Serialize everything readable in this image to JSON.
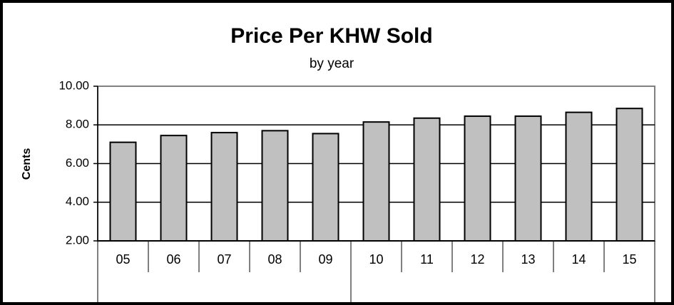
{
  "chart_data": {
    "type": "bar",
    "title": "Price Per KHW Sold",
    "subtitle": "by year",
    "y_label": "Cents",
    "categories": [
      "05",
      "06",
      "07",
      "08",
      "09",
      "10",
      "11",
      "12",
      "13",
      "14",
      "15"
    ],
    "values": [
      7.1,
      7.45,
      7.6,
      7.7,
      7.55,
      8.15,
      8.35,
      8.45,
      8.45,
      8.65,
      8.85
    ],
    "color": "#c0c0c0",
    "ylim": [
      2,
      10
    ],
    "yticks": [
      {
        "value": 2,
        "label": "2.00"
      },
      {
        "value": 4,
        "label": "4.00"
      },
      {
        "value": 6,
        "label": "6.00"
      },
      {
        "value": 8,
        "label": "8.00"
      },
      {
        "value": 10,
        "label": "10.00"
      }
    ],
    "grid": true
  }
}
